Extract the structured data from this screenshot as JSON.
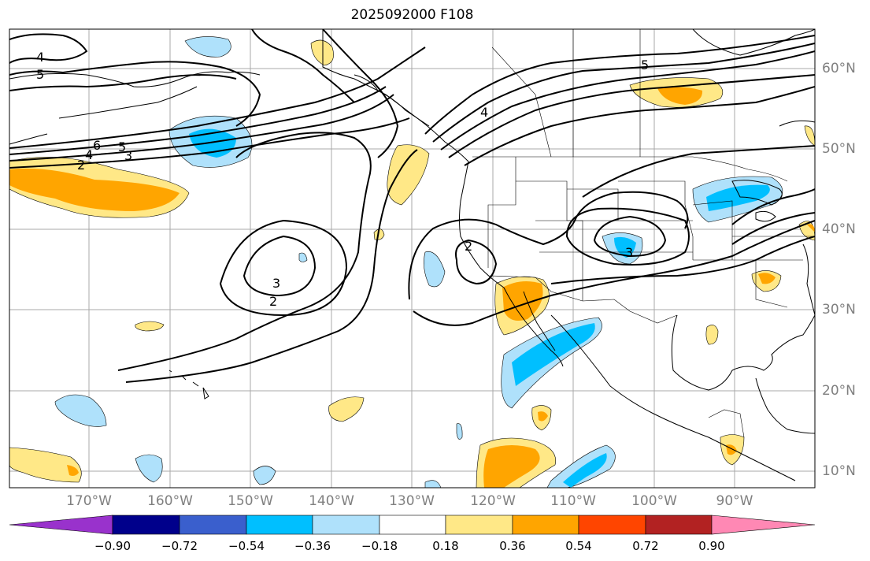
{
  "title": "2025092000 F108",
  "lat_labels": [
    "60°N",
    "50°N",
    "40°N",
    "30°N",
    "20°N",
    "10°N"
  ],
  "lon_labels": [
    "170°W",
    "160°W",
    "150°W",
    "140°W",
    "130°W",
    "120°W",
    "110°W",
    "100°W",
    "90°W"
  ],
  "colorbar": {
    "labels": [
      "−0.90",
      "−0.72",
      "−0.54",
      "−0.36",
      "−0.18",
      "0.18",
      "0.36",
      "0.54",
      "0.72",
      "0.90"
    ],
    "colors": [
      "#9932cc",
      "#00008b",
      "#3a5fcd",
      "#00bfff",
      "#afe1fb",
      "#ffffff",
      "#ffe887",
      "#ffa500",
      "#ff4500",
      "#b22222",
      "#ff88b4"
    ]
  },
  "contour_labels": [
    "4",
    "5",
    "6",
    "4",
    "5",
    "3",
    "2",
    "4",
    "5",
    "2",
    "3",
    "2",
    "3"
  ],
  "colors": {
    "land_line": "#000000",
    "grid": "#a9a9a9",
    "axis_label": "#808080"
  }
}
